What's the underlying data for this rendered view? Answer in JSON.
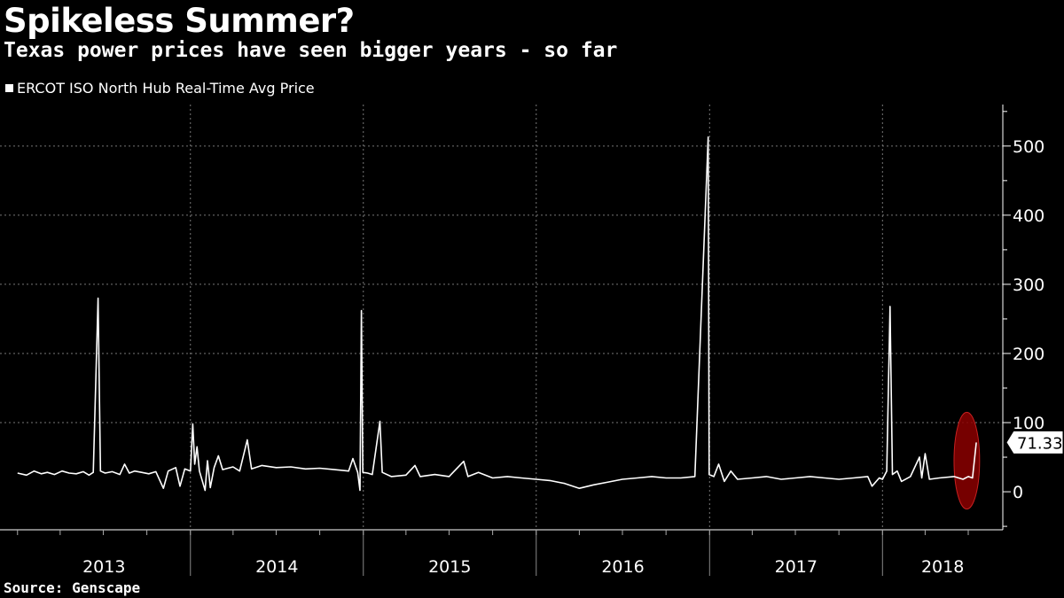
{
  "title": "Spikeless Summer?",
  "subtitle": "Texas power prices have seen bigger years - so far",
  "source": "Source:  Genscape",
  "chart_data": {
    "type": "line",
    "series": [
      {
        "name": "ERCOT ISO North Hub Real-Time Avg Price",
        "color": "#ffffff",
        "points": [
          [
            "2013-01-01",
            27
          ],
          [
            "2013-01-20",
            24
          ],
          [
            "2013-02-05",
            30
          ],
          [
            "2013-02-20",
            26
          ],
          [
            "2013-03-05",
            28
          ],
          [
            "2013-03-20",
            25
          ],
          [
            "2013-04-05",
            30
          ],
          [
            "2013-04-20",
            27
          ],
          [
            "2013-05-05",
            26
          ],
          [
            "2013-05-20",
            29
          ],
          [
            "2013-06-01",
            24
          ],
          [
            "2013-06-10",
            28
          ],
          [
            "2013-06-20",
            280
          ],
          [
            "2013-06-25",
            30
          ],
          [
            "2013-07-05",
            27
          ],
          [
            "2013-07-20",
            29
          ],
          [
            "2013-08-05",
            25
          ],
          [
            "2013-08-15",
            40
          ],
          [
            "2013-08-25",
            27
          ],
          [
            "2013-09-05",
            30
          ],
          [
            "2013-09-20",
            28
          ],
          [
            "2013-10-05",
            26
          ],
          [
            "2013-10-20",
            29
          ],
          [
            "2013-11-05",
            5
          ],
          [
            "2013-11-15",
            30
          ],
          [
            "2013-12-01",
            35
          ],
          [
            "2013-12-10",
            8
          ],
          [
            "2013-12-20",
            33
          ],
          [
            "2014-01-01",
            30
          ],
          [
            "2014-01-06",
            98
          ],
          [
            "2014-01-10",
            40
          ],
          [
            "2014-01-15",
            65
          ],
          [
            "2014-01-20",
            30
          ],
          [
            "2014-02-01",
            2
          ],
          [
            "2014-02-06",
            45
          ],
          [
            "2014-02-12",
            6
          ],
          [
            "2014-02-20",
            35
          ],
          [
            "2014-03-01",
            52
          ],
          [
            "2014-03-10",
            32
          ],
          [
            "2014-04-01",
            36
          ],
          [
            "2014-04-15",
            30
          ],
          [
            "2014-05-01",
            75
          ],
          [
            "2014-05-10",
            33
          ],
          [
            "2014-06-01",
            38
          ],
          [
            "2014-07-01",
            35
          ],
          [
            "2014-08-01",
            36
          ],
          [
            "2014-09-01",
            33
          ],
          [
            "2014-10-01",
            34
          ],
          [
            "2014-11-01",
            32
          ],
          [
            "2014-12-01",
            30
          ],
          [
            "2014-12-10",
            48
          ],
          [
            "2014-12-20",
            28
          ],
          [
            "2014-12-25",
            2
          ],
          [
            "2014-12-28",
            262
          ],
          [
            "2014-12-31",
            28
          ],
          [
            "2015-01-10",
            27
          ],
          [
            "2015-01-20",
            25
          ],
          [
            "2015-02-05",
            102
          ],
          [
            "2015-02-10",
            28
          ],
          [
            "2015-03-01",
            22
          ],
          [
            "2015-04-01",
            24
          ],
          [
            "2015-04-20",
            38
          ],
          [
            "2015-05-01",
            22
          ],
          [
            "2015-06-01",
            25
          ],
          [
            "2015-07-01",
            22
          ],
          [
            "2015-08-01",
            44
          ],
          [
            "2015-08-10",
            22
          ],
          [
            "2015-09-01",
            28
          ],
          [
            "2015-10-01",
            20
          ],
          [
            "2015-11-01",
            22
          ],
          [
            "2015-12-01",
            20
          ],
          [
            "2016-01-01",
            18
          ],
          [
            "2016-02-01",
            16
          ],
          [
            "2016-03-01",
            12
          ],
          [
            "2016-04-01",
            5
          ],
          [
            "2016-05-01",
            10
          ],
          [
            "2016-06-01",
            14
          ],
          [
            "2016-07-01",
            18
          ],
          [
            "2016-08-01",
            20
          ],
          [
            "2016-09-01",
            22
          ],
          [
            "2016-10-01",
            20
          ],
          [
            "2016-11-01",
            20
          ],
          [
            "2016-12-01",
            22
          ],
          [
            "2016-12-29",
            513
          ],
          [
            "2016-12-31",
            25
          ],
          [
            "2017-01-10",
            22
          ],
          [
            "2017-01-20",
            40
          ],
          [
            "2017-02-01",
            15
          ],
          [
            "2017-02-15",
            30
          ],
          [
            "2017-03-01",
            18
          ],
          [
            "2017-04-01",
            20
          ],
          [
            "2017-05-01",
            22
          ],
          [
            "2017-06-01",
            18
          ],
          [
            "2017-07-01",
            20
          ],
          [
            "2017-08-01",
            22
          ],
          [
            "2017-09-01",
            20
          ],
          [
            "2017-10-01",
            18
          ],
          [
            "2017-11-01",
            20
          ],
          [
            "2017-12-01",
            22
          ],
          [
            "2017-12-10",
            8
          ],
          [
            "2017-12-25",
            20
          ],
          [
            "2018-01-01",
            18
          ],
          [
            "2018-01-10",
            30
          ],
          [
            "2018-01-17",
            268
          ],
          [
            "2018-01-22",
            25
          ],
          [
            "2018-02-01",
            30
          ],
          [
            "2018-02-10",
            15
          ],
          [
            "2018-03-01",
            22
          ],
          [
            "2018-03-20",
            50
          ],
          [
            "2018-03-25",
            20
          ],
          [
            "2018-04-01",
            55
          ],
          [
            "2018-04-10",
            18
          ],
          [
            "2018-05-01",
            20
          ],
          [
            "2018-06-01",
            22
          ],
          [
            "2018-06-20",
            18
          ],
          [
            "2018-07-01",
            22
          ],
          [
            "2018-07-10",
            20
          ],
          [
            "2018-07-18",
            71.33
          ]
        ]
      }
    ],
    "last_value_label": "71.33",
    "ylim": [
      -55,
      560
    ],
    "yticks": [
      0,
      100,
      200,
      300,
      400,
      500
    ],
    "year_labels": [
      "2013",
      "2014",
      "2015",
      "2016",
      "2017",
      "2018"
    ],
    "grid": true,
    "legend_position": "top-left",
    "y_axis_side": "right",
    "highlight": {
      "shape": "ellipse",
      "color": "#8b0000",
      "x_range": [
        "2018-06-01",
        "2018-07-25"
      ],
      "y_range": [
        -25,
        115
      ]
    }
  }
}
